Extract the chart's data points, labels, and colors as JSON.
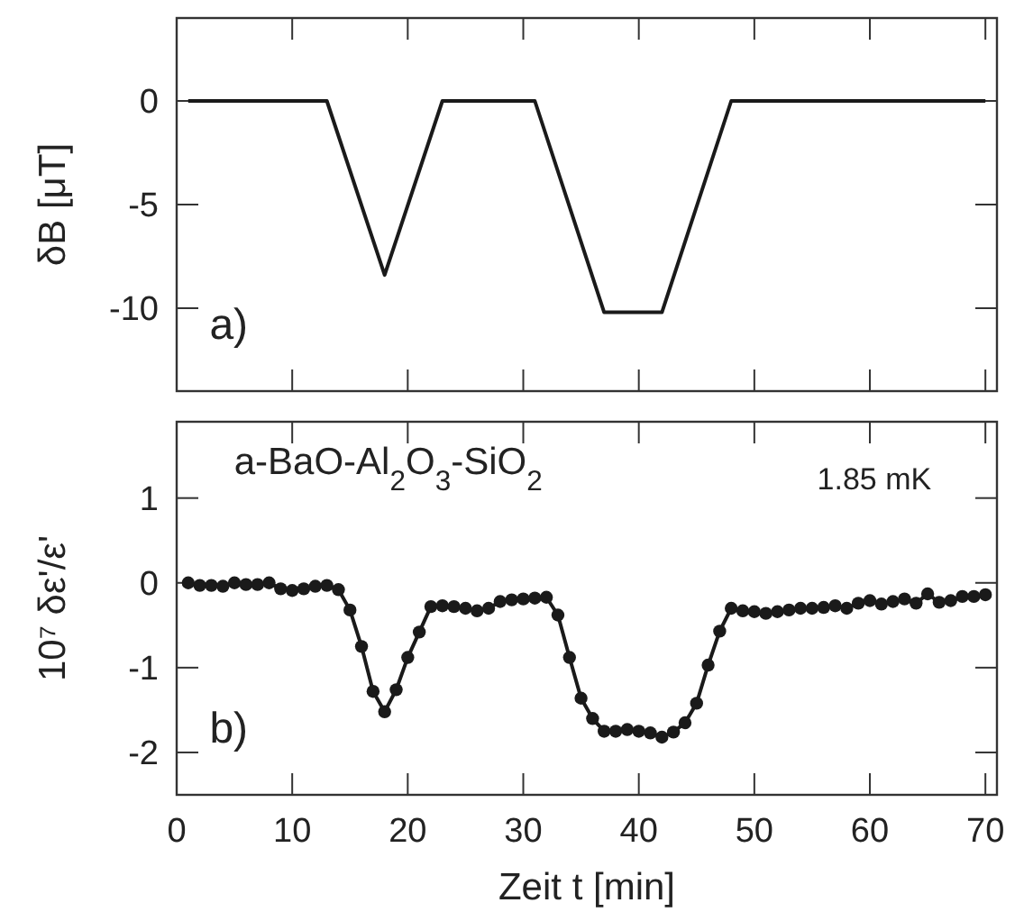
{
  "chart_data": [
    {
      "type": "line",
      "ylabel": "δB [μT]",
      "annotations": [
        "a)"
      ],
      "xlim": [
        0,
        71
      ],
      "ylim": [
        -14,
        4
      ],
      "xticks": [
        0,
        10,
        20,
        30,
        40,
        50,
        60,
        70
      ],
      "yticks": [
        0,
        -5,
        -10
      ],
      "tick_labels": "y",
      "grid": false,
      "marker": "none",
      "line_style": "solid",
      "x": [
        1,
        13,
        18,
        23,
        31,
        37,
        42,
        48,
        70
      ],
      "series": [
        {
          "color": "#1a1a1a",
          "values": [
            0,
            0,
            -8.4,
            0,
            0,
            -10.2,
            -10.2,
            0,
            0
          ]
        }
      ]
    },
    {
      "type": "line",
      "ylabel": "10⁷ δε'/ε'",
      "xlabel": "Zeit t [min]",
      "annotations": [
        "a-BaO-Al$_{2}$O$_{3}$-SiO$_{2}$",
        "1.85 mK",
        "b)"
      ],
      "xlim": [
        0,
        71
      ],
      "ylim": [
        -2.5,
        1.9
      ],
      "xticks": [
        0,
        10,
        20,
        30,
        40,
        50,
        60,
        70
      ],
      "yticks": [
        1,
        0,
        -1,
        -2
      ],
      "grid": false,
      "marker": "circle",
      "line_style": "solid",
      "x": [
        1,
        2,
        3,
        4,
        5,
        6,
        7,
        8,
        9,
        10,
        11,
        12,
        13,
        14,
        15,
        16,
        17,
        18,
        19,
        20,
        21,
        22,
        23,
        24,
        25,
        26,
        27,
        28,
        29,
        30,
        31,
        32,
        33,
        34,
        35,
        36,
        37,
        38,
        39,
        40,
        41,
        42,
        43,
        44,
        45,
        46,
        47,
        48,
        49,
        50,
        51,
        52,
        53,
        54,
        55,
        56,
        57,
        58,
        59,
        60,
        61,
        62,
        63,
        64,
        65,
        66,
        67,
        68,
        69,
        70
      ],
      "series": [
        {
          "color": "#1a1a1a",
          "values": [
            0,
            -0.03,
            -0.03,
            -0.04,
            0,
            -0.02,
            -0.02,
            0,
            -0.07,
            -0.09,
            -0.07,
            -0.04,
            -0.03,
            -0.08,
            -0.32,
            -0.75,
            -1.28,
            -1.52,
            -1.26,
            -0.88,
            -0.58,
            -0.28,
            -0.27,
            -0.28,
            -0.3,
            -0.33,
            -0.3,
            -0.22,
            -0.2,
            -0.19,
            -0.18,
            -0.17,
            -0.38,
            -0.88,
            -1.36,
            -1.6,
            -1.75,
            -1.75,
            -1.73,
            -1.75,
            -1.77,
            -1.82,
            -1.76,
            -1.65,
            -1.42,
            -0.97,
            -0.57,
            -0.3,
            -0.33,
            -0.34,
            -0.36,
            -0.34,
            -0.32,
            -0.3,
            -0.3,
            -0.29,
            -0.27,
            -0.3,
            -0.24,
            -0.21,
            -0.25,
            -0.22,
            -0.19,
            -0.24,
            -0.13,
            -0.23,
            -0.21,
            -0.16,
            -0.16,
            -0.14
          ]
        }
      ]
    }
  ]
}
